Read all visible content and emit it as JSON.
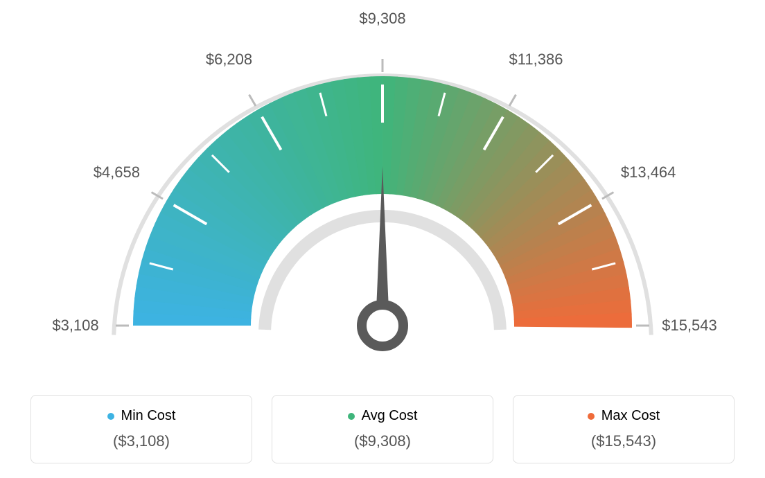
{
  "gauge": {
    "type": "gauge",
    "tick_labels": [
      "$3,108",
      "$4,658",
      "$6,208",
      "$9,308",
      "$11,386",
      "$13,464",
      "$15,543"
    ],
    "tick_positions_deg": [
      180,
      150,
      120,
      90,
      60,
      30,
      0
    ],
    "needle_angle_deg": 90,
    "arc_colors": {
      "start": "#3db3e3",
      "mid": "#3fb57b",
      "end": "#ef6b3a"
    },
    "outer_ring_color": "#e0e0e0",
    "inner_ring_color": "#e0e0e0",
    "tick_color_outer": "#bbbbbb",
    "tick_color_inner": "#ffffff",
    "needle_color": "#5a5a5a",
    "background_color": "#ffffff",
    "label_fontsize": 22,
    "label_color": "#555555",
    "outer_radius": 360,
    "inner_radius": 190,
    "ring_thickness": 6
  },
  "legend": {
    "min": {
      "title": "Min Cost",
      "value": "($3,108)",
      "color": "#3db3e3"
    },
    "avg": {
      "title": "Avg Cost",
      "value": "($9,308)",
      "color": "#3fb57b"
    },
    "max": {
      "title": "Max Cost",
      "value": "($15,543)",
      "color": "#ef6b3a"
    },
    "card_border_color": "#e0e0e0",
    "card_border_radius": 8,
    "title_fontsize": 20,
    "value_fontsize": 22,
    "value_color": "#555555"
  }
}
